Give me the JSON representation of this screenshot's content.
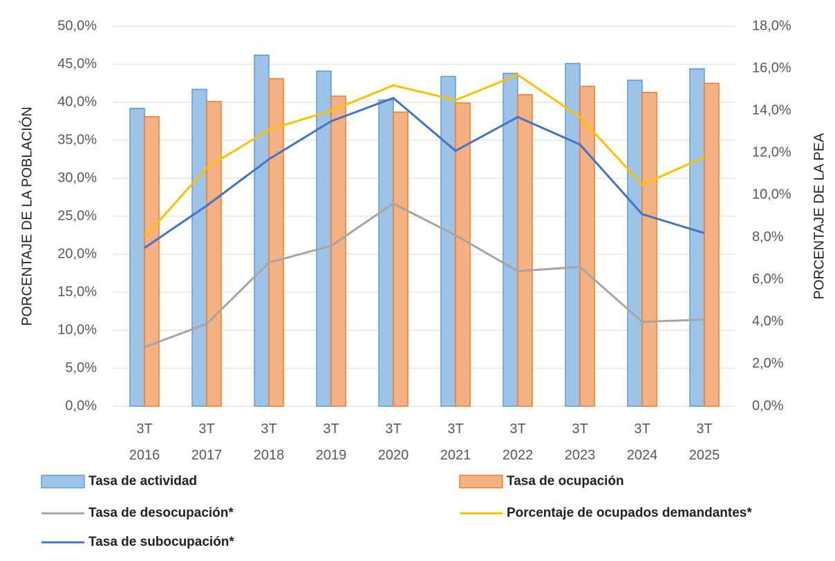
{
  "chart_data": {
    "type": "bar",
    "categories": [
      "3T 2016",
      "3T 2017",
      "3T 2018",
      "3T 2019",
      "3T 2020",
      "3T 2021",
      "3T 2022",
      "3T 2023",
      "3T 2024",
      "3T 2025"
    ],
    "y_label": "PORCENTAJE DE LA POBLACIÓN",
    "y2_label": "PORCENTAJE DE LA PEA",
    "ylim": [
      0,
      50
    ],
    "yticks": [
      {
        "value": 0,
        "label": "0,0%"
      },
      {
        "value": 5,
        "label": "5,0%"
      },
      {
        "value": 10,
        "label": "10,0%"
      },
      {
        "value": 15,
        "label": "15,0%"
      },
      {
        "value": 20,
        "label": "20,0%"
      },
      {
        "value": 25,
        "label": "25,0%"
      },
      {
        "value": 30,
        "label": "30,0%"
      },
      {
        "value": 35,
        "label": "35,0%"
      },
      {
        "value": 40,
        "label": "40,0%"
      },
      {
        "value": 45,
        "label": "45,0%"
      },
      {
        "value": 50,
        "label": "50,0%"
      }
    ],
    "y2lim": [
      0,
      18
    ],
    "y2ticks": [
      {
        "value": 0,
        "label": "0,0%"
      },
      {
        "value": 2,
        "label": "2,0%"
      },
      {
        "value": 4,
        "label": "4,0%"
      },
      {
        "value": 6,
        "label": "6,0%"
      },
      {
        "value": 8,
        "label": "8,0%"
      },
      {
        "value": 10,
        "label": "10,0%"
      },
      {
        "value": 12,
        "label": "12,0%"
      },
      {
        "value": 14,
        "label": "14,0%"
      },
      {
        "value": 16,
        "label": "16,0%"
      },
      {
        "value": 18,
        "label": "18,0%"
      }
    ],
    "grid": true,
    "legend": "bottom",
    "series": [
      {
        "name": "Tasa de actividad",
        "type": "bar",
        "color": "#9dc3e6",
        "edge": "#5b9bd5",
        "values": [
          39.2,
          41.7,
          46.2,
          44.1,
          40.3,
          43.4,
          43.8,
          45.1,
          42.9,
          44.4
        ]
      },
      {
        "name": "Tasa de ocupación",
        "type": "bar",
        "color": "#f4b183",
        "edge": "#ed7d31",
        "values": [
          38.1,
          40.1,
          43.1,
          40.8,
          38.7,
          39.9,
          41.0,
          42.1,
          41.3,
          42.5
        ]
      },
      {
        "name": "Tasa de desocupación*",
        "type": "line",
        "axis": "y2",
        "color": "#a5a5a5",
        "values": [
          2.8,
          3.9,
          6.8,
          7.6,
          9.6,
          8.1,
          6.4,
          6.6,
          4.0,
          4.1
        ]
      },
      {
        "name": "Porcentaje de ocupados demandantes*",
        "type": "line",
        "axis": "y2",
        "color": "#ffc000",
        "values": [
          8.0,
          11.3,
          13.1,
          14.0,
          15.2,
          14.5,
          15.7,
          13.7,
          10.5,
          11.8
        ]
      },
      {
        "name": "Tasa de subocupación*",
        "type": "line",
        "axis": "y2",
        "color": "#4472c4",
        "values": [
          7.5,
          9.5,
          11.7,
          13.5,
          14.6,
          12.1,
          13.7,
          12.4,
          9.1,
          8.2
        ]
      }
    ]
  }
}
